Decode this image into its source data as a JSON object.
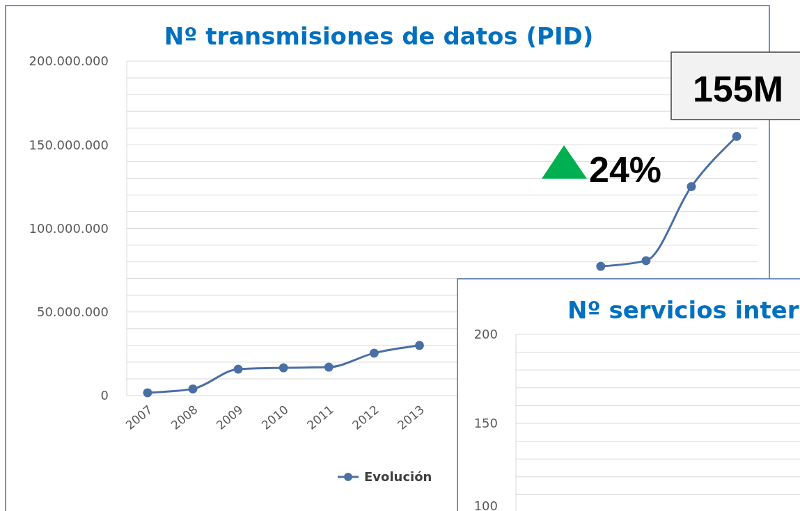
{
  "chart_data": [
    {
      "type": "line",
      "title": "Nº transmisiones de datos (PID)",
      "categories": [
        "2007",
        "2008",
        "2009",
        "2010",
        "2011",
        "2012",
        "2013",
        null,
        null,
        null,
        null,
        null,
        null,
        null
      ],
      "series": [
        {
          "name": "Evolución",
          "color": "#4a6fa5",
          "values": [
            1700000,
            4000000,
            15800000,
            16600000,
            17000000,
            25400000,
            30000000,
            null,
            null,
            null,
            77300000,
            80700000,
            125000000,
            155000000
          ]
        }
      ],
      "ylim": [
        0,
        200000000
      ],
      "yticks": [
        {
          "value": 0,
          "label": "0"
        },
        {
          "value": 10000000,
          "label": null
        },
        {
          "value": 20000000,
          "label": null
        },
        {
          "value": 30000000,
          "label": null
        },
        {
          "value": 40000000,
          "label": null
        },
        {
          "value": 50000000,
          "label": "50.000.000"
        },
        {
          "value": 60000000,
          "label": null
        },
        {
          "value": 70000000,
          "label": null
        },
        {
          "value": 80000000,
          "label": null
        },
        {
          "value": 90000000,
          "label": null
        },
        {
          "value": 100000000,
          "label": "100.000.000"
        },
        {
          "value": 110000000,
          "label": null
        },
        {
          "value": 120000000,
          "label": null
        },
        {
          "value": 130000000,
          "label": null
        },
        {
          "value": 140000000,
          "label": null
        },
        {
          "value": 150000000,
          "label": "150.000.000"
        },
        {
          "value": 160000000,
          "label": null
        },
        {
          "value": 170000000,
          "label": null
        },
        {
          "value": 180000000,
          "label": null
        },
        {
          "value": 190000000,
          "label": null
        },
        {
          "value": 200000000,
          "label": "200.000.000"
        }
      ],
      "grid": "y",
      "legend": "bottom",
      "marker": "circle",
      "line_style": "solid",
      "annotations": [
        "155M",
        "24%"
      ]
    },
    {
      "type": "other",
      "title": "Nº servicios inter",
      "annotations": [
        "200",
        "150",
        "100"
      ]
    }
  ]
}
